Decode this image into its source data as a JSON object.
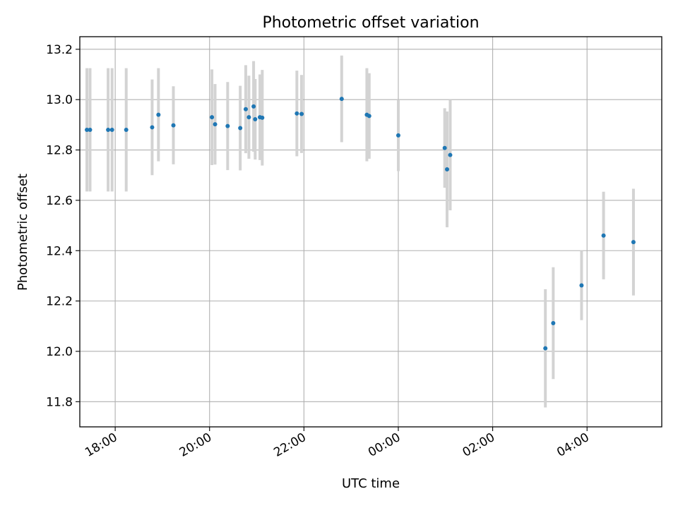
{
  "chart_data": {
    "type": "scatter",
    "title": "Photometric offset variation",
    "xlabel": "UTC time",
    "ylabel": "Photometric offset",
    "x_unit": "UTC time (day 1 starts at 00:00 of first evening)",
    "xlim": [
      "17:15",
      "05:35+1"
    ],
    "ylim": [
      11.7,
      13.25
    ],
    "grid": true,
    "x_ticks": [
      "18:00",
      "20:00",
      "22:00",
      "00:00",
      "02:00",
      "04:00"
    ],
    "y_ticks": [
      "11.8",
      "12.0",
      "12.2",
      "12.4",
      "12.6",
      "12.8",
      "13.0",
      "13.2"
    ],
    "colors": {
      "point": "#1f77b4",
      "errorbar": "#d3d3d3",
      "grid": "#b0b0b0"
    },
    "points": [
      {
        "t": "17:24",
        "y": 12.88,
        "err": 0.245
      },
      {
        "t": "17:28",
        "y": 12.88,
        "err": 0.245
      },
      {
        "t": "17:51",
        "y": 12.88,
        "err": 0.245
      },
      {
        "t": "17:56",
        "y": 12.88,
        "err": 0.245
      },
      {
        "t": "18:14",
        "y": 12.88,
        "err": 0.245
      },
      {
        "t": "18:47",
        "y": 12.89,
        "err": 0.19
      },
      {
        "t": "18:55",
        "y": 12.94,
        "err": 0.185
      },
      {
        "t": "19:14",
        "y": 12.898,
        "err": 0.155
      },
      {
        "t": "20:03",
        "y": 12.93,
        "err": 0.19
      },
      {
        "t": "20:07",
        "y": 12.902,
        "err": 0.16
      },
      {
        "t": "20:23",
        "y": 12.895,
        "err": 0.175
      },
      {
        "t": "20:39",
        "y": 12.887,
        "err": 0.168
      },
      {
        "t": "20:46",
        "y": 12.962,
        "err": 0.175
      },
      {
        "t": "20:50",
        "y": 12.93,
        "err": 0.165
      },
      {
        "t": "20:56",
        "y": 12.973,
        "err": 0.18
      },
      {
        "t": "20:58",
        "y": 12.922,
        "err": 0.16
      },
      {
        "t": "21:04",
        "y": 12.93,
        "err": 0.17
      },
      {
        "t": "21:07",
        "y": 12.928,
        "err": 0.19
      },
      {
        "t": "21:51",
        "y": 12.945,
        "err": 0.17
      },
      {
        "t": "21:57",
        "y": 12.943,
        "err": 0.155
      },
      {
        "t": "22:48",
        "y": 13.003,
        "err": 0.172
      },
      {
        "t": "23:20",
        "y": 12.94,
        "err": 0.185
      },
      {
        "t": "23:23",
        "y": 12.935,
        "err": 0.17
      },
      {
        "t": "00:00+1",
        "y": 12.858,
        "err": 0.142
      },
      {
        "t": "00:59+1",
        "y": 12.808,
        "err": 0.158
      },
      {
        "t": "01:02+1",
        "y": 12.723,
        "err": 0.23
      },
      {
        "t": "01:06+1",
        "y": 12.78,
        "err": 0.22
      },
      {
        "t": "03:07+1",
        "y": 12.012,
        "err": 0.235
      },
      {
        "t": "03:17+1",
        "y": 12.112,
        "err": 0.222
      },
      {
        "t": "03:53+1",
        "y": 12.262,
        "err": 0.138
      },
      {
        "t": "04:21+1",
        "y": 12.46,
        "err": 0.174
      },
      {
        "t": "04:59+1",
        "y": 12.434,
        "err": 0.212
      }
    ]
  }
}
